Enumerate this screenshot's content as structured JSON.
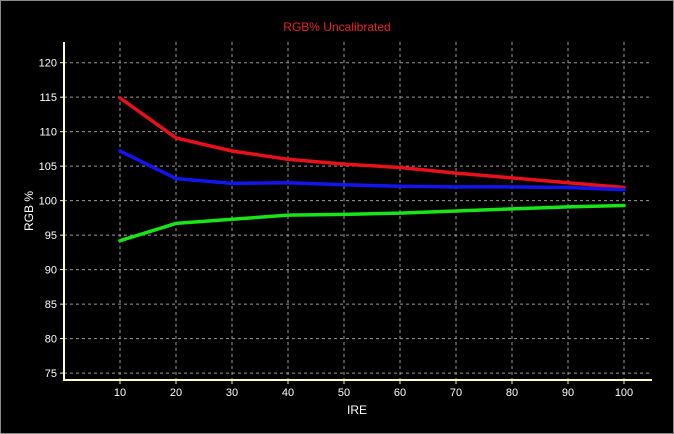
{
  "chart_data": {
    "type": "line",
    "title": "RGB% Uncalibrated",
    "xlabel": "IRE",
    "ylabel": "RGB %",
    "x": [
      10,
      20,
      30,
      40,
      50,
      60,
      70,
      80,
      90,
      100
    ],
    "xlim": [
      0,
      105
    ],
    "ylim": [
      74,
      123
    ],
    "xticks": [
      10,
      20,
      30,
      40,
      50,
      60,
      70,
      80,
      90,
      100
    ],
    "yticks": [
      75,
      80,
      85,
      90,
      95,
      100,
      105,
      110,
      115,
      120
    ],
    "grid": true,
    "legend": "none",
    "series": [
      {
        "color": "#e8101a",
        "values": [
          114.9,
          109.1,
          107.2,
          106.0,
          105.3,
          104.8,
          104.0,
          103.3,
          102.6,
          101.9
        ]
      },
      {
        "color": "#1414ee",
        "values": [
          107.2,
          103.2,
          102.5,
          102.6,
          102.3,
          102.1,
          102.0,
          102.0,
          101.9,
          101.6
        ]
      },
      {
        "color": "#18e418",
        "values": [
          94.2,
          96.7,
          97.3,
          97.9,
          98.0,
          98.2,
          98.5,
          98.8,
          99.1,
          99.3
        ]
      }
    ],
    "colors": {
      "background": "#000000",
      "axis": "#ffffc0",
      "grid": "#9a9a9a",
      "title": "#e8232a",
      "text": "#ffffff"
    }
  }
}
